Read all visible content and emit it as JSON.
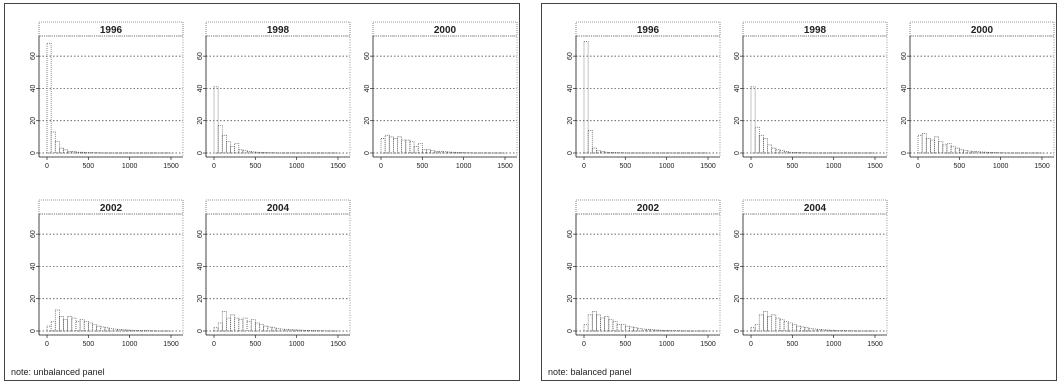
{
  "colors": {
    "frame": "#444444",
    "bar": "#555555",
    "grid": "#333333",
    "strip_fill": "#ffffff"
  },
  "chart_data": [
    {
      "type": "bar",
      "note": "note: unbalanced panel",
      "xlim": [
        0,
        1500
      ],
      "ylim": [
        0,
        70
      ],
      "xticks": [
        "0",
        "500",
        "1000",
        "1500"
      ],
      "yticks": [
        "0",
        "20",
        "40",
        "60"
      ],
      "bin_width": 50,
      "grid": "dotted horizontal at y ticks",
      "panels": [
        {
          "label": "1996",
          "values": [
            68,
            13,
            7,
            3,
            2,
            1,
            1,
            0.5,
            0.5,
            0.3,
            0.3,
            0.2,
            0.2,
            0.1,
            0.1,
            0.1,
            0.1,
            0.1,
            0.1,
            0.1,
            0.1,
            0.1,
            0.1,
            0.1,
            0.1,
            0.1,
            0.1,
            0.1,
            0.1,
            0.1
          ]
        },
        {
          "label": "1998",
          "values": [
            41,
            17,
            11,
            7,
            4,
            6,
            2,
            1.5,
            1,
            0.7,
            0.5,
            0.4,
            0.3,
            0.2,
            0.2,
            0.1,
            0.1,
            0.1,
            0.1,
            0.1,
            0.1,
            0.1,
            0.1,
            0.1,
            0.1,
            0.1,
            0.1,
            0.1,
            0.1,
            0.1
          ]
        },
        {
          "label": "2000",
          "values": [
            9,
            11,
            10,
            9,
            10,
            8,
            8,
            7,
            4,
            6,
            2,
            2,
            1.5,
            1,
            1,
            0.8,
            0.6,
            0.5,
            0.4,
            0.3,
            0.2,
            0.2,
            0.1,
            0.1,
            0.1,
            0.1,
            0.1,
            0.1,
            0.1,
            0.1
          ]
        },
        {
          "label": "2002",
          "values": [
            3,
            6,
            13,
            9,
            7,
            9,
            8,
            6,
            7,
            6,
            5,
            4,
            3,
            2.5,
            2,
            1.5,
            1.2,
            1,
            0.8,
            0.6,
            0.5,
            0.4,
            0.3,
            0.3,
            0.2,
            0.2,
            0.1,
            0.1,
            0.1,
            0.1
          ]
        },
        {
          "label": "2004",
          "values": [
            2,
            5,
            12,
            8,
            10,
            8,
            7,
            8,
            6,
            7,
            5,
            4,
            3,
            2.5,
            2,
            1.5,
            1.2,
            1,
            0.8,
            0.7,
            0.6,
            0.5,
            0.4,
            0.3,
            0.3,
            0.2,
            0.2,
            0.1,
            0.1,
            0.1
          ]
        }
      ]
    },
    {
      "type": "bar",
      "note": "note: balanced panel",
      "xlim": [
        0,
        1500
      ],
      "ylim": [
        0,
        70
      ],
      "xticks": [
        "0",
        "500",
        "1000",
        "1500"
      ],
      "yticks": [
        "0",
        "20",
        "40",
        "60"
      ],
      "bin_width": 50,
      "grid": "dotted horizontal at y ticks",
      "panels": [
        {
          "label": "1996",
          "values": [
            69,
            14,
            3,
            1.5,
            1,
            0.5,
            0.4,
            0.3,
            0.2,
            0.2,
            0.1,
            0.1,
            0.1,
            0.1,
            0.1,
            0.1,
            0.1,
            0.1,
            0.1,
            0.1,
            0.1,
            0.1,
            0.1,
            0.1,
            0.1,
            0.1,
            0.1,
            0.1,
            0.1,
            0.1
          ]
        },
        {
          "label": "1998",
          "values": [
            41,
            16,
            11,
            9,
            5,
            3,
            2,
            1.5,
            1,
            0.5,
            0.4,
            0.3,
            0.2,
            0.2,
            0.1,
            0.1,
            0.1,
            0.1,
            0.1,
            0.1,
            0.1,
            0.1,
            0.1,
            0.1,
            0.1,
            0.1,
            0.1,
            0.1,
            0.1,
            0.1
          ]
        },
        {
          "label": "2000",
          "values": [
            11,
            12,
            9,
            8,
            10,
            7,
            5,
            6,
            4,
            3,
            2,
            1.5,
            1.2,
            1,
            0.8,
            0.6,
            0.5,
            0.4,
            0.3,
            0.2,
            0.2,
            0.1,
            0.1,
            0.1,
            0.1,
            0.1,
            0.1,
            0.1,
            0.1,
            0.1
          ]
        },
        {
          "label": "2002",
          "values": [
            4,
            10,
            12,
            10,
            8,
            9,
            7,
            6,
            4,
            4,
            3,
            2.5,
            2,
            1.5,
            1.2,
            1,
            0.8,
            0.6,
            0.5,
            0.4,
            0.3,
            0.3,
            0.2,
            0.2,
            0.1,
            0.1,
            0.1,
            0.1,
            0.1,
            0.1
          ]
        },
        {
          "label": "2004",
          "values": [
            2,
            4,
            10,
            12,
            9,
            10,
            8,
            7,
            6,
            5,
            4,
            3,
            2.5,
            2,
            1.5,
            1.2,
            1,
            0.8,
            0.6,
            0.5,
            0.4,
            0.3,
            0.3,
            0.2,
            0.2,
            0.1,
            0.1,
            0.1,
            0.1,
            0.1
          ]
        }
      ]
    }
  ]
}
